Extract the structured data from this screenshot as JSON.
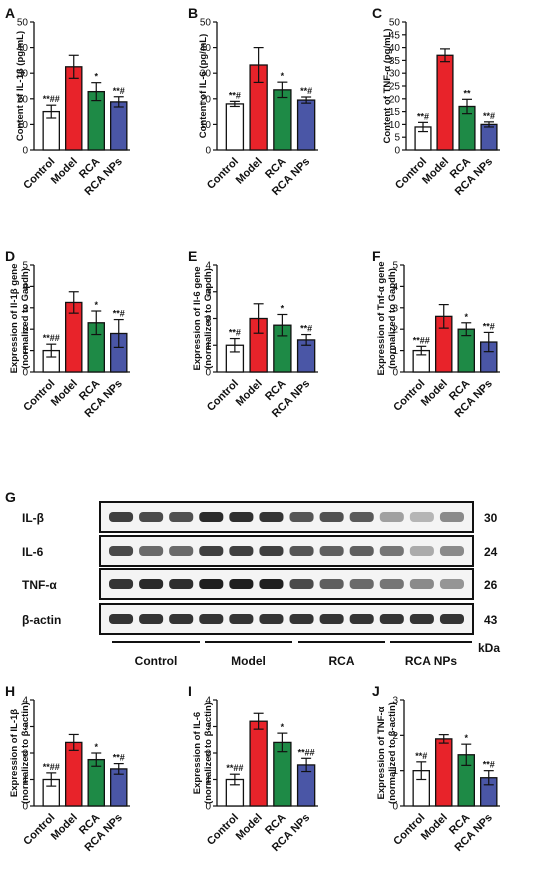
{
  "colors": {
    "control": "#ffffff",
    "model": "#e8232a",
    "rca": "#1e8a46",
    "rca_nps": "#4a56a6",
    "axis": "#111111"
  },
  "chart_data": [
    {
      "panel": "A",
      "type": "bar",
      "categories": [
        "Control",
        "Model",
        "RCA",
        "RCA NPs"
      ],
      "values": [
        15,
        32.5,
        22.8,
        18.8
      ],
      "errors": [
        2.5,
        4.5,
        3.5,
        2.0
      ],
      "sig": [
        "**##",
        "",
        "*",
        "**#"
      ],
      "ylabel": "Content of IL-1β (pg/mL)",
      "ylim": [
        0,
        50
      ],
      "yticks": [
        0,
        10,
        20,
        30,
        40,
        50
      ]
    },
    {
      "panel": "B",
      "type": "bar",
      "categories": [
        "Control",
        "Model",
        "RCA",
        "RCA NPs"
      ],
      "values": [
        18,
        33.2,
        23.5,
        19.5
      ],
      "errors": [
        1.0,
        6.8,
        3.0,
        1.2
      ],
      "sig": [
        "**#",
        "",
        "*",
        "**#"
      ],
      "ylabel": "Content of IL-6 (pg/mL)",
      "ylim": [
        0,
        50
      ],
      "yticks": [
        0,
        10,
        20,
        30,
        40,
        50
      ]
    },
    {
      "panel": "C",
      "type": "bar",
      "categories": [
        "Control",
        "Model",
        "RCA",
        "RCA NPs"
      ],
      "values": [
        9,
        37,
        17,
        10
      ],
      "errors": [
        1.8,
        2.5,
        2.8,
        1.0
      ],
      "sig": [
        "**#",
        "",
        "**",
        "**#"
      ],
      "ylabel": "Content of TNF-α (pg/mL)",
      "ylim": [
        0,
        50
      ],
      "yticks": [
        0,
        5,
        10,
        15,
        20,
        25,
        30,
        35,
        40,
        45,
        50
      ]
    },
    {
      "panel": "D",
      "type": "bar",
      "categories": [
        "Control",
        "Model",
        "RCA",
        "RCA NPs"
      ],
      "values": [
        1.0,
        3.25,
        2.3,
        1.8
      ],
      "errors": [
        0.3,
        0.5,
        0.55,
        0.65
      ],
      "sig": [
        "**##",
        "",
        "*",
        "**#"
      ],
      "ylabel": [
        "Expression of Il-1β gene",
        "(normalized to Gapdh)"
      ],
      "ylim": [
        0,
        5
      ],
      "yticks": [
        0,
        1,
        2,
        3,
        4,
        5
      ]
    },
    {
      "panel": "E",
      "type": "bar",
      "categories": [
        "Control",
        "Model",
        "RCA",
        "RCA NPs"
      ],
      "values": [
        1.0,
        2.0,
        1.75,
        1.2
      ],
      "errors": [
        0.25,
        0.55,
        0.4,
        0.2
      ],
      "sig": [
        "**#",
        "",
        "*",
        "**#"
      ],
      "ylabel": [
        "Expression of Il-6 gene",
        "(normalized to Gapdh)"
      ],
      "ylim": [
        0,
        4
      ],
      "yticks": [
        0,
        1,
        2,
        3,
        4
      ]
    },
    {
      "panel": "F",
      "type": "bar",
      "categories": [
        "Control",
        "Model",
        "RCA",
        "RCA NPs"
      ],
      "values": [
        1.0,
        2.6,
        2.0,
        1.4
      ],
      "errors": [
        0.2,
        0.55,
        0.3,
        0.45
      ],
      "sig": [
        "**##",
        "",
        "*",
        "**#"
      ],
      "ylabel": [
        "Expression of Tnf-α gene",
        "(normalized to Gapdh)"
      ],
      "ylim": [
        0,
        5
      ],
      "yticks": [
        0,
        1,
        2,
        3,
        4,
        5
      ]
    },
    {
      "panel": "H",
      "type": "bar",
      "categories": [
        "Control",
        "Model",
        "RCA",
        "RCA NPs"
      ],
      "values": [
        1.0,
        2.4,
        1.75,
        1.4
      ],
      "errors": [
        0.25,
        0.3,
        0.25,
        0.2
      ],
      "sig": [
        "**##",
        "",
        "*",
        "**#"
      ],
      "ylabel": [
        "Expression of IL-1β",
        "(normalized to β-actin)"
      ],
      "ylim": [
        0,
        4
      ],
      "yticks": [
        0,
        1,
        2,
        3,
        4
      ]
    },
    {
      "panel": "I",
      "type": "bar",
      "categories": [
        "Control",
        "Model",
        "RCA",
        "RCA NPs"
      ],
      "values": [
        1.0,
        3.2,
        2.4,
        1.55
      ],
      "errors": [
        0.2,
        0.3,
        0.35,
        0.25
      ],
      "sig": [
        "**##",
        "",
        "*",
        "**##"
      ],
      "ylabel": [
        "Expression of IL-6",
        "(normalized to β-actin)"
      ],
      "ylim": [
        0,
        4
      ],
      "yticks": [
        0,
        1,
        2,
        3,
        4
      ]
    },
    {
      "panel": "J",
      "type": "bar",
      "categories": [
        "Control",
        "Model",
        "RCA",
        "RCA NPs"
      ],
      "values": [
        1.0,
        1.9,
        1.45,
        0.8
      ],
      "errors": [
        0.25,
        0.12,
        0.3,
        0.2
      ],
      "sig": [
        "**#",
        "",
        "*",
        "**#"
      ],
      "ylabel": [
        "Expression of TNF-α",
        "(normalized to β-actin)"
      ],
      "ylim": [
        0,
        3
      ],
      "yticks": [
        0,
        1,
        2,
        3
      ]
    }
  ],
  "blot": {
    "panel": "G",
    "rows": [
      {
        "label": "IL-β",
        "kda": "30",
        "intensity": [
          0.8,
          0.75,
          0.72,
          0.9,
          0.88,
          0.85,
          0.7,
          0.72,
          0.68,
          0.35,
          0.25,
          0.45
        ]
      },
      {
        "label": "IL-6",
        "kda": "24",
        "intensity": [
          0.75,
          0.6,
          0.6,
          0.8,
          0.8,
          0.8,
          0.7,
          0.65,
          0.65,
          0.55,
          0.3,
          0.45
        ]
      },
      {
        "label": "TNF-α",
        "kda": "26",
        "intensity": [
          0.85,
          0.9,
          0.88,
          0.95,
          0.95,
          0.95,
          0.75,
          0.65,
          0.6,
          0.55,
          0.45,
          0.4
        ]
      },
      {
        "label": "β-actin",
        "kda": "43",
        "intensity": [
          0.85,
          0.85,
          0.85,
          0.85,
          0.85,
          0.85,
          0.85,
          0.85,
          0.85,
          0.85,
          0.85,
          0.85
        ]
      }
    ],
    "groups": [
      "Control",
      "Model",
      "RCA",
      "RCA NPs"
    ],
    "unit": "kDa"
  }
}
